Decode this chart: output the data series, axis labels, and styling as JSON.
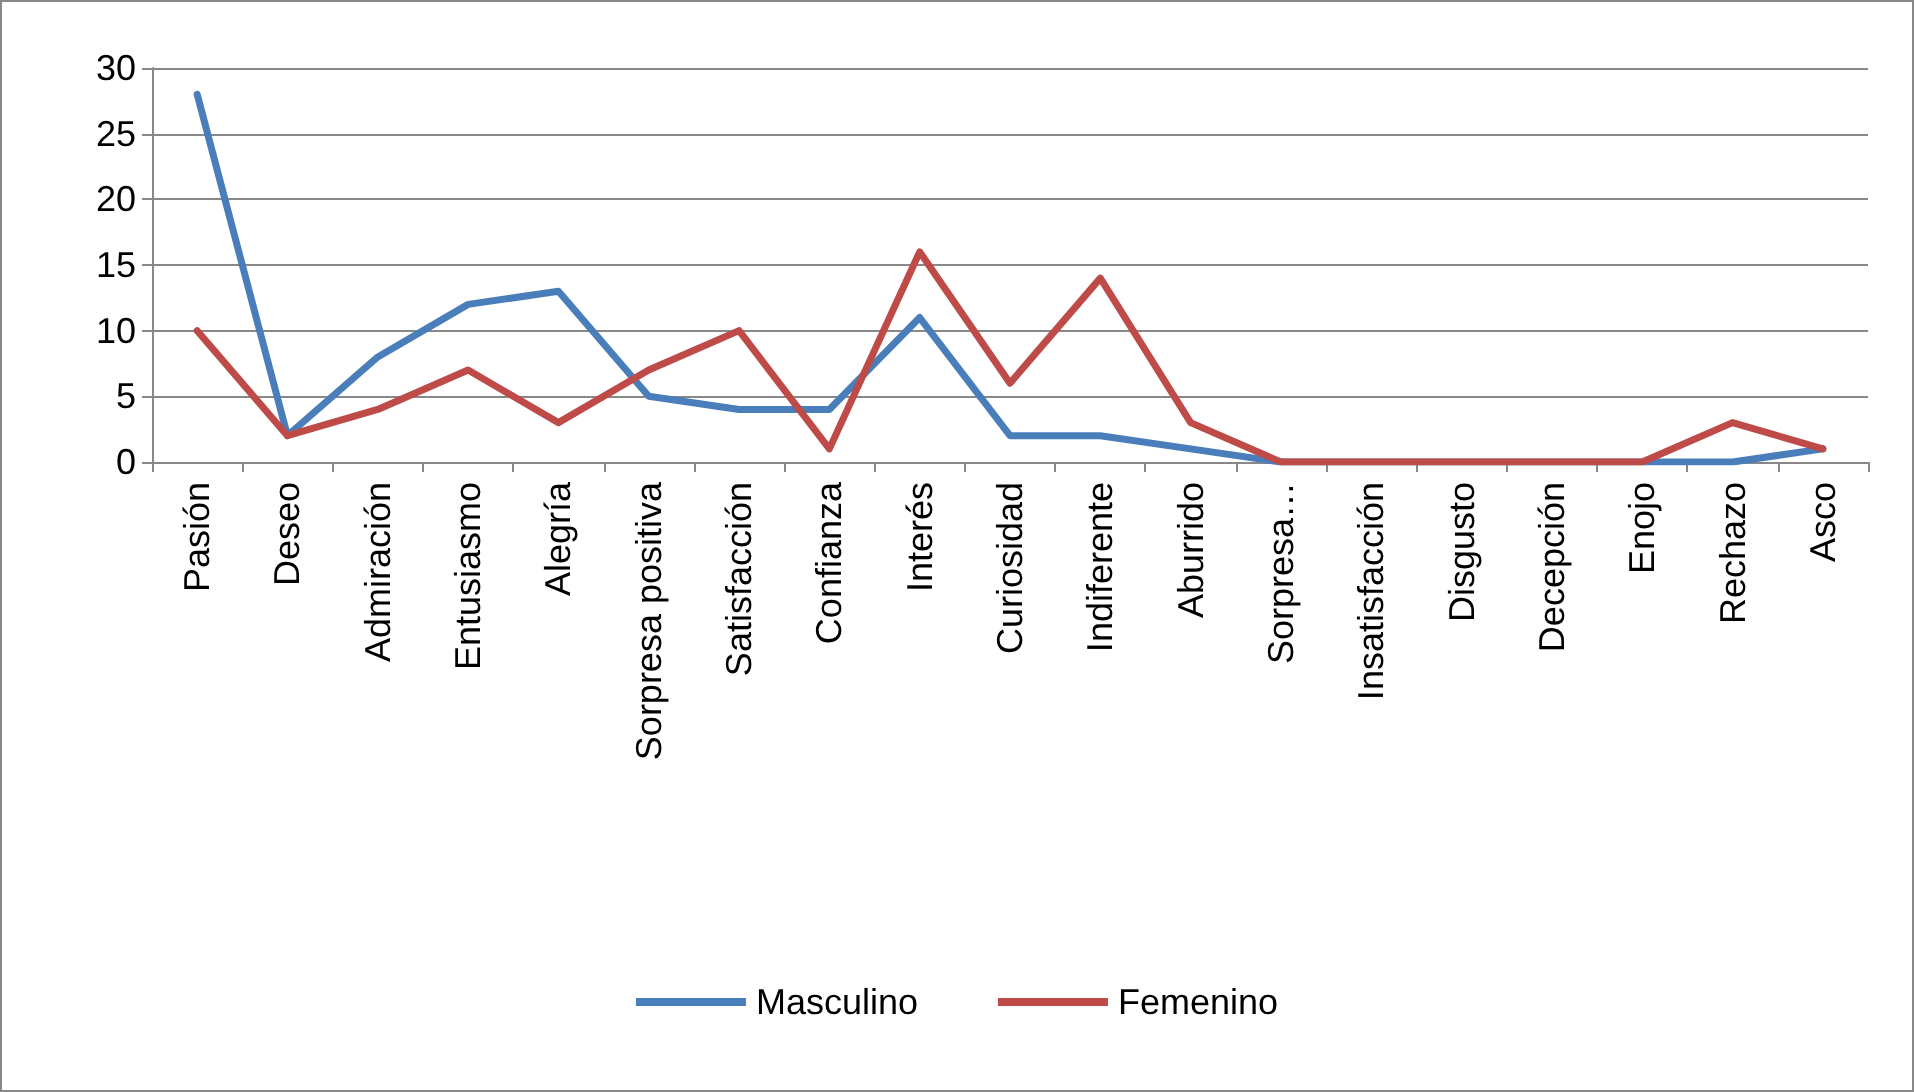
{
  "chart_data": {
    "type": "line",
    "categories": [
      "Pasión",
      "Deseo",
      "Admiración",
      "Entusiasmo",
      "Alegría",
      "Sorpresa positiva",
      "Satisfacción",
      "Confianza",
      "Interés",
      "Curiosidad",
      "Indiferente",
      "Aburrido",
      "Sorpresa…",
      "Insatisfacción",
      "Disgusto",
      "Decepción",
      "Enojo",
      "Rechazo",
      "Asco"
    ],
    "series": [
      {
        "name": "Masculino",
        "color": "#4a7ebb",
        "values": [
          28,
          2,
          8,
          12,
          13,
          5,
          4,
          4,
          11,
          2,
          2,
          1,
          0,
          0,
          0,
          0,
          0,
          0,
          1
        ]
      },
      {
        "name": "Femenino",
        "color": "#be4b48",
        "values": [
          10,
          2,
          4,
          7,
          3,
          7,
          10,
          1,
          16,
          6,
          14,
          3,
          0,
          0,
          0,
          0,
          0,
          3,
          1
        ]
      }
    ],
    "ylim": [
      0,
      30
    ],
    "yticks": [
      0,
      5,
      10,
      15,
      20,
      25,
      30
    ],
    "grid": "y",
    "legend": "bottom",
    "marker": "none",
    "line_style": "solid"
  }
}
